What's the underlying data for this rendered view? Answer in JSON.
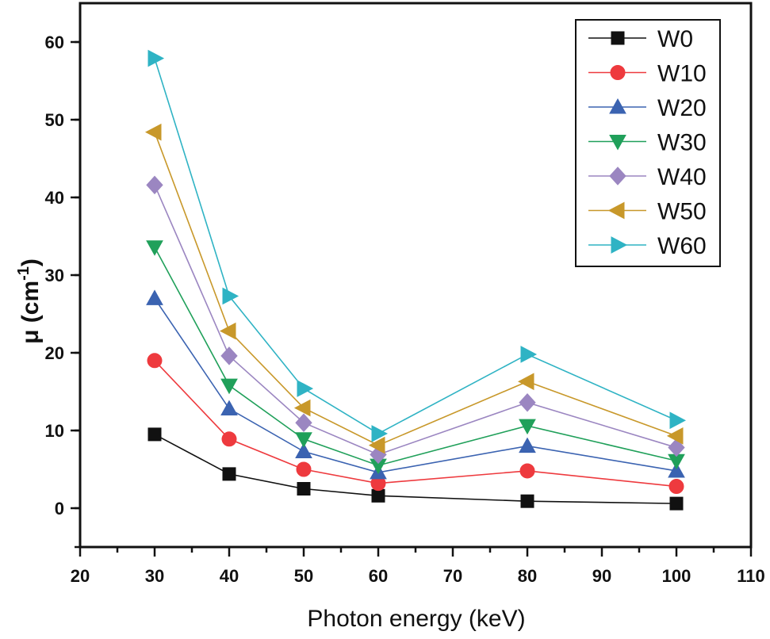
{
  "chart_data": {
    "type": "line",
    "title": "",
    "xlabel": "Photon energy (keV)",
    "ylabel": "μ (cm⁻¹)",
    "ylabel_parts": {
      "main": "μ (cm",
      "sup": "-1",
      "end": ")"
    },
    "xlim": [
      20,
      110
    ],
    "ylim": [
      -5,
      65
    ],
    "x_ticks": [
      20,
      30,
      40,
      50,
      60,
      70,
      80,
      90,
      100,
      110
    ],
    "y_ticks": [
      0,
      10,
      20,
      30,
      40,
      50,
      60
    ],
    "grid": false,
    "legend_position": "top-right",
    "x": [
      30,
      40,
      50,
      60,
      80,
      100
    ],
    "series": [
      {
        "name": "W0",
        "color": "#111111",
        "marker": "square",
        "values": [
          9.5,
          4.4,
          2.5,
          1.6,
          0.9,
          0.6
        ]
      },
      {
        "name": "W10",
        "color": "#ee3a3e",
        "marker": "circle",
        "values": [
          19.0,
          8.9,
          5.0,
          3.2,
          4.8,
          2.8
        ]
      },
      {
        "name": "W20",
        "color": "#3b63b1",
        "marker": "triangle-up",
        "values": [
          27.0,
          12.8,
          7.3,
          4.6,
          8.0,
          4.8
        ]
      },
      {
        "name": "W30",
        "color": "#20a05a",
        "marker": "triangle-down",
        "values": [
          33.6,
          15.8,
          8.9,
          5.5,
          10.6,
          6.1
        ]
      },
      {
        "name": "W40",
        "color": "#9b86c1",
        "marker": "diamond",
        "values": [
          41.6,
          19.6,
          11.0,
          6.9,
          13.6,
          7.8
        ]
      },
      {
        "name": "W50",
        "color": "#c8982a",
        "marker": "triangle-left",
        "values": [
          48.4,
          22.8,
          12.9,
          8.1,
          16.3,
          9.3
        ]
      },
      {
        "name": "W60",
        "color": "#2fb3c4",
        "marker": "triangle-right",
        "values": [
          57.9,
          27.3,
          15.4,
          9.6,
          19.8,
          11.3
        ]
      }
    ]
  }
}
